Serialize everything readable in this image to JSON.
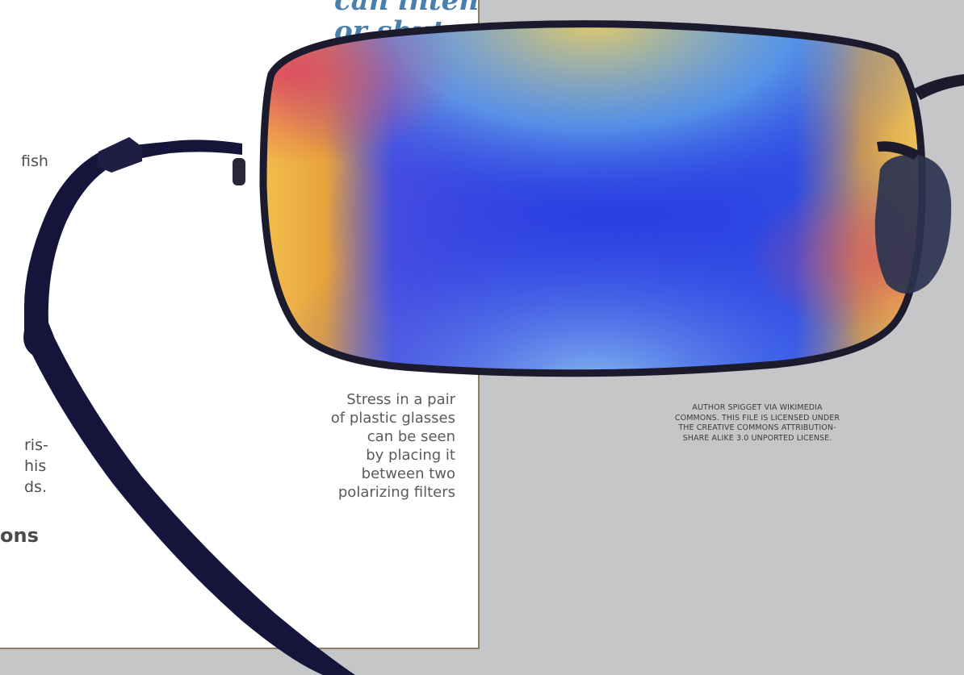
{
  "pull_quote": {
    "lines": [
      "can intensify",
      "or shut off"
    ],
    "color": "#4a7fad"
  },
  "body_fragments": {
    "line1": "fish",
    "line2": "ris-",
    "line3": "his",
    "line4": "ds.",
    "heading": "ons"
  },
  "caption": {
    "lines": [
      "Stress in a pair",
      "of plastic glasses",
      "can be seen",
      "by placing it",
      "between two",
      "polarizing filters"
    ]
  },
  "credit": {
    "lines": [
      "AUTHOR SPIGGET VIA WIKIMEDIA",
      "COMMONS. THIS FILE IS LICENSED UNDER",
      "THE CREATIVE COMMONS ATTRIBUTION-",
      "SHARE ALIKE 3.0 UNPORTED LICENSE."
    ]
  },
  "photo": {
    "subject": "plastic-glasses-photoelasticity-image",
    "frame_color": "#15143a",
    "accent_colors": [
      "#2f4fe0",
      "#f2c14a",
      "#e0405f"
    ]
  },
  "colors": {
    "page_background": "#c5c6c8",
    "paper": "#ffffff",
    "paper_border": "#8b7f62"
  }
}
